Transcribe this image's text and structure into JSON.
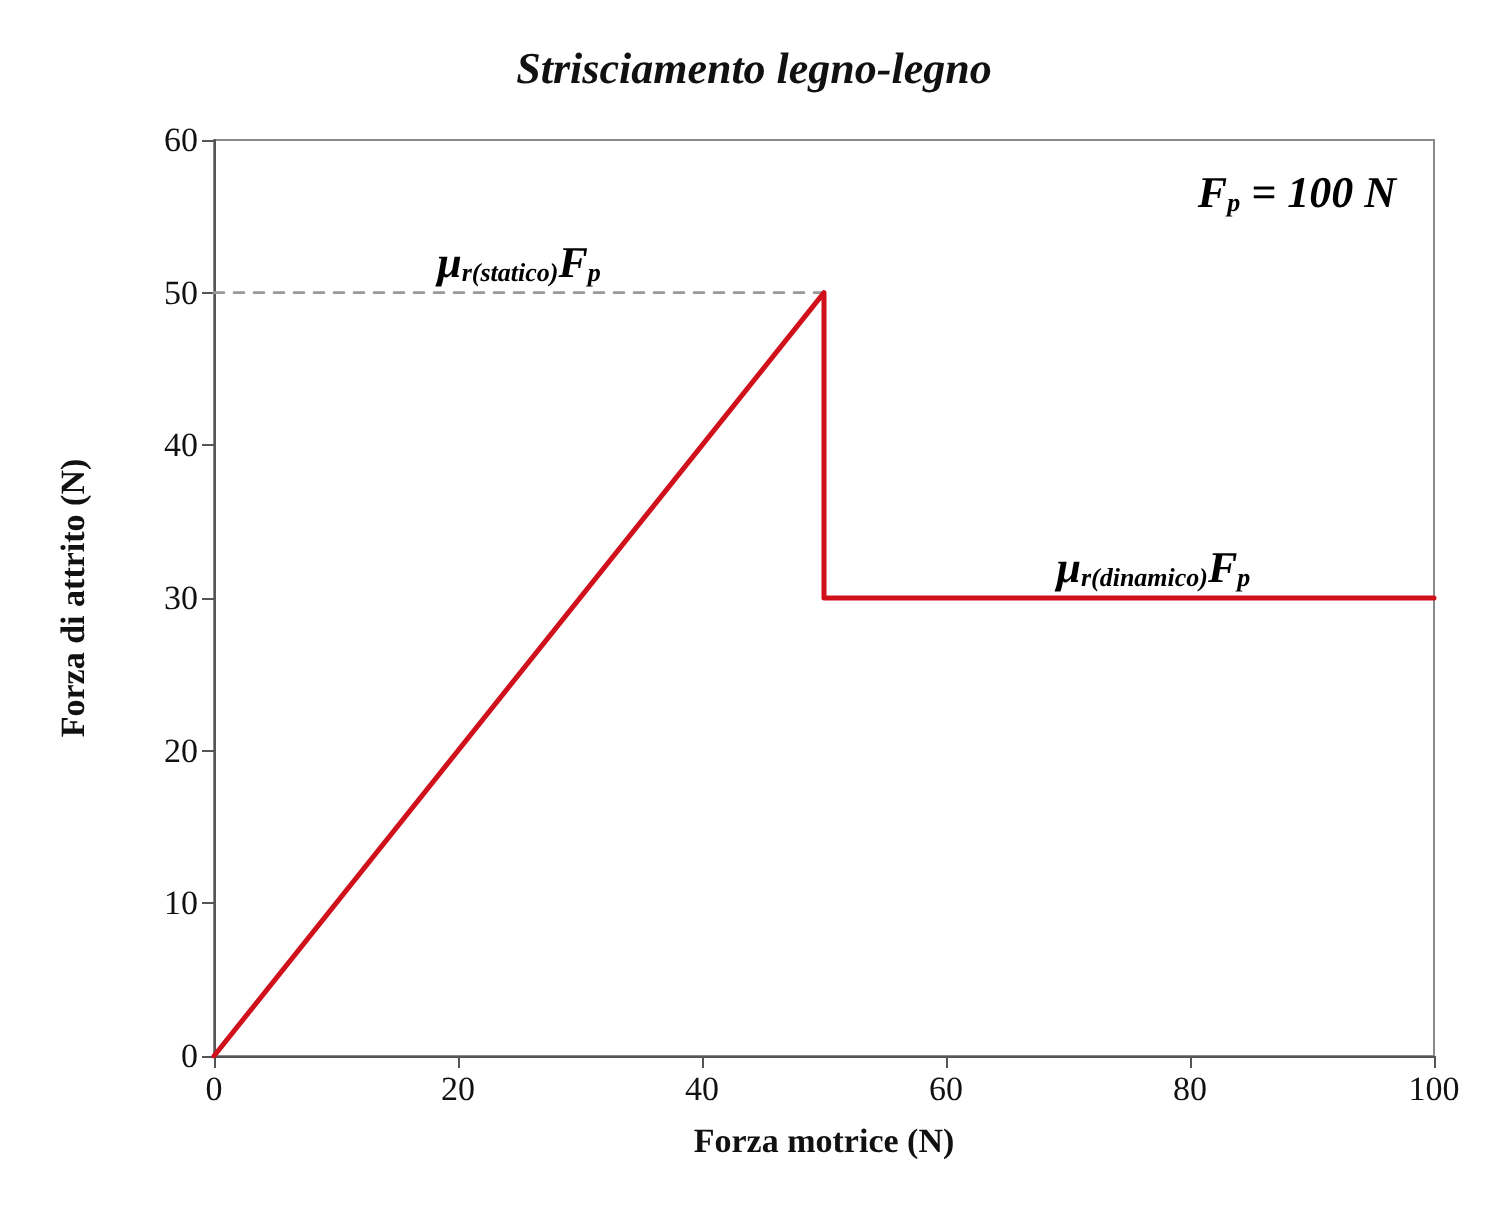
{
  "chart_data": {
    "type": "line",
    "title": "Strisciamento legno-legno",
    "xlabel": "Forza motrice (N)",
    "ylabel": "Forza di attrito (N)",
    "xlim": [
      0,
      100
    ],
    "xticks": [
      0,
      20,
      40,
      60,
      80,
      100
    ],
    "ylim": [
      0,
      60
    ],
    "yticks": [
      0,
      10,
      20,
      30,
      40,
      50,
      60
    ],
    "grid": false,
    "marker": "none",
    "series": [
      {
        "color": "#d0101a",
        "x": [
          0,
          50,
          50,
          100
        ],
        "values": [
          0,
          50,
          30,
          30
        ]
      },
      {
        "color": "#999999",
        "x": [
          0,
          50
        ],
        "values": [
          50,
          50
        ],
        "line_style": "dashed"
      }
    ],
    "annotations": [
      {
        "text": "μ$_{r(statico)}$F$_{p}$",
        "x": 25,
        "y": 50
      },
      {
        "text": "μ$_{r(dinamico)}$F$_{p}$",
        "x": 77,
        "y": 30
      },
      "F$_{p}$ = 100 N"
    ]
  }
}
